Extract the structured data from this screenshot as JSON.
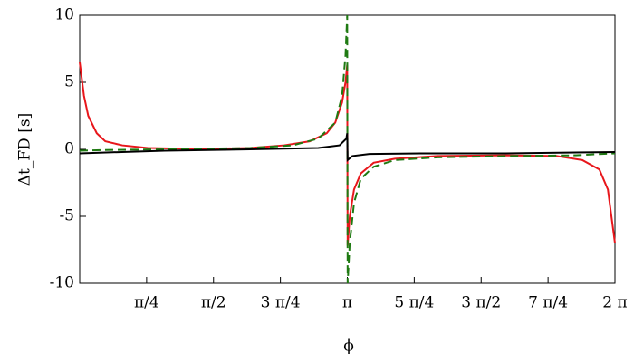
{
  "chart_data": {
    "type": "line",
    "x_label": "ϕ",
    "y_label": "Δt_FD [s]",
    "xlim": [
      0,
      6.283185
    ],
    "ylim": [
      -10,
      10
    ],
    "xticks": [
      {
        "value": 0.785398,
        "label": "π/4"
      },
      {
        "value": 1.570796,
        "label": "π/2"
      },
      {
        "value": 2.356194,
        "label": "3 π/4"
      },
      {
        "value": 3.141593,
        "label": "π"
      },
      {
        "value": 3.926991,
        "label": "5 π/4"
      },
      {
        "value": 4.712389,
        "label": "3 π/2"
      },
      {
        "value": 5.497787,
        "label": "7 π/4"
      },
      {
        "value": 6.283185,
        "label": "2 π"
      }
    ],
    "yticks": [
      -10,
      -5,
      0,
      5,
      10
    ],
    "series": [
      {
        "color": "#e8161b",
        "dash": false,
        "x": [
          0,
          0.05,
          0.1,
          0.2,
          0.3,
          0.5,
          0.8,
          1.2,
          1.6,
          2.0,
          2.4,
          2.7,
          2.9,
          3.0,
          3.08,
          3.12,
          3.14,
          3.145,
          3.17,
          3.22,
          3.3,
          3.45,
          3.7,
          4.2,
          5.0,
          5.6,
          5.9,
          6.1,
          6.2,
          6.283
        ],
        "values": [
          6.5,
          4.0,
          2.5,
          1.2,
          0.6,
          0.3,
          0.1,
          0.05,
          0.05,
          0.1,
          0.3,
          0.6,
          1.2,
          2.0,
          3.5,
          5,
          6.3,
          -7.2,
          -5,
          -3,
          -1.8,
          -1.0,
          -0.7,
          -0.5,
          -0.45,
          -0.5,
          -0.8,
          -1.5,
          -3,
          -7
        ]
      },
      {
        "color": "#1f7a12",
        "dash": true,
        "x": [
          0,
          0.3,
          1,
          2,
          2.5,
          2.8,
          3.0,
          3.08,
          3.12,
          3.14,
          3.145,
          3.17,
          3.22,
          3.3,
          3.45,
          3.7,
          4.2,
          5,
          5.8,
          6.283
        ],
        "values": [
          -0.1,
          -0.05,
          0,
          0.1,
          0.3,
          0.8,
          2,
          4,
          7,
          10,
          -10,
          -7,
          -4,
          -2.2,
          -1.3,
          -0.8,
          -0.6,
          -0.5,
          -0.45,
          -0.3
        ]
      },
      {
        "color": "#000000",
        "dash": false,
        "x": [
          0,
          1,
          2,
          2.8,
          3.05,
          3.13,
          3.14,
          3.145,
          3.2,
          3.4,
          4,
          5,
          6.283
        ],
        "values": [
          -0.3,
          -0.1,
          0,
          0.1,
          0.3,
          0.8,
          1.2,
          -0.8,
          -0.5,
          -0.35,
          -0.3,
          -0.3,
          -0.2
        ]
      }
    ]
  }
}
